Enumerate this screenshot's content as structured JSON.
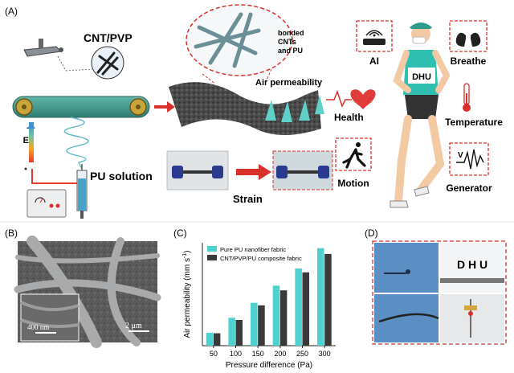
{
  "panels": {
    "a": "(A)",
    "b": "(B)",
    "c": "(C)",
    "d": "(D)"
  },
  "panel_a": {
    "cnt_pvp": "CNT/PVP",
    "bonded_line1": "bonded",
    "bonded_line2": "CNTs",
    "bonded_line3": "and PU",
    "air_permeability": "Air permeability",
    "health": "Health",
    "pu_solution": "PU  solution",
    "strain": "Strain",
    "e_field": "E",
    "jersey": "DHU",
    "icons": [
      {
        "name": "wifi-router-icon",
        "label": "AI"
      },
      {
        "name": "lungs-icon",
        "label": "Breathe"
      },
      {
        "name": "thermometer-icon",
        "label": "Temperature"
      },
      {
        "name": "running-person-icon",
        "label": "Motion"
      },
      {
        "name": "voltage-wave-icon",
        "label": "Generator"
      }
    ],
    "accent_red": "#d9302b",
    "fiber_teal": "#3fbfb3"
  },
  "panel_b": {
    "scale_large": "2 μm",
    "scale_small": "400 nm"
  },
  "panel_d": {
    "text": "D H U"
  },
  "chart_data": {
    "type": "bar",
    "categories": [
      "50",
      "100",
      "150",
      "200",
      "250",
      "300"
    ],
    "series": [
      {
        "name": "Pure PU nanofiber fabric",
        "color": "#4fd1cf",
        "values": [
          60,
          130,
          200,
          280,
          360,
          455
        ]
      },
      {
        "name": "CNT/PVP/PU composite fabric",
        "color": "#3a3a3a",
        "values": [
          58,
          120,
          188,
          258,
          342,
          428
        ]
      }
    ],
    "xlabel": "Pressure difference (Pa)",
    "ylabel": "Air permeability (mm s",
    "ylabel_sup": "-1",
    "ylabel_end": ")",
    "ylim": [
      0,
      480
    ],
    "yticks": [],
    "grid": false,
    "legend": "top-left"
  }
}
